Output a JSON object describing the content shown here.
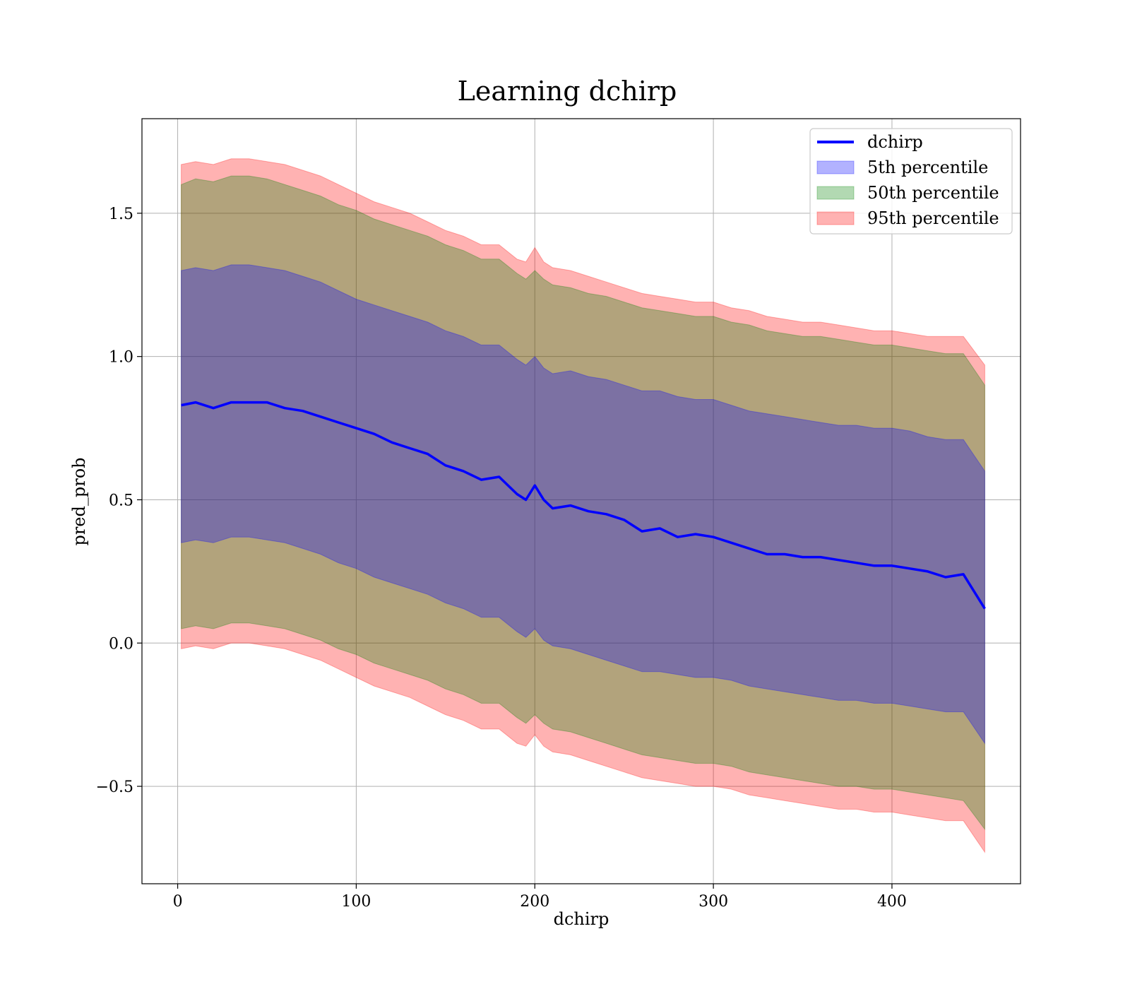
{
  "chart_data": {
    "type": "area",
    "title": "Learning dchirp",
    "xlabel": "dchirp",
    "ylabel": "pred_prob",
    "xlim": [
      -20,
      472
    ],
    "ylim": [
      -0.84,
      1.83
    ],
    "xticks": [
      0,
      100,
      200,
      300,
      400
    ],
    "xtick_labels": [
      "0",
      "100",
      "200",
      "300",
      "400"
    ],
    "yticks": [
      -0.5,
      0.0,
      0.5,
      1.0,
      1.5
    ],
    "ytick_labels": [
      "−0.5",
      "0.0",
      "0.5",
      "1.0",
      "1.5"
    ],
    "grid": true,
    "legend_position": "upper right",
    "x": [
      2,
      10,
      20,
      30,
      40,
      50,
      60,
      70,
      80,
      90,
      100,
      110,
      120,
      130,
      140,
      150,
      160,
      170,
      180,
      190,
      195,
      200,
      205,
      210,
      220,
      230,
      240,
      250,
      260,
      270,
      280,
      290,
      300,
      310,
      320,
      330,
      340,
      350,
      360,
      370,
      380,
      390,
      400,
      410,
      420,
      430,
      440,
      452
    ],
    "series": [
      {
        "name": "dchirp",
        "kind": "line",
        "color": "#0000ff",
        "values": [
          0.83,
          0.84,
          0.82,
          0.84,
          0.84,
          0.84,
          0.82,
          0.81,
          0.79,
          0.77,
          0.75,
          0.73,
          0.7,
          0.68,
          0.66,
          0.62,
          0.6,
          0.57,
          0.58,
          0.52,
          0.5,
          0.55,
          0.5,
          0.47,
          0.48,
          0.46,
          0.45,
          0.43,
          0.39,
          0.4,
          0.37,
          0.38,
          0.37,
          0.35,
          0.33,
          0.31,
          0.31,
          0.3,
          0.3,
          0.29,
          0.28,
          0.27,
          0.27,
          0.26,
          0.25,
          0.23,
          0.24,
          0.12
        ]
      },
      {
        "name": "5th percentile",
        "kind": "band",
        "color": "#0000ff",
        "upper": [
          1.3,
          1.31,
          1.3,
          1.32,
          1.32,
          1.31,
          1.3,
          1.28,
          1.26,
          1.23,
          1.2,
          1.18,
          1.16,
          1.14,
          1.12,
          1.09,
          1.07,
          1.04,
          1.04,
          0.99,
          0.97,
          1.0,
          0.96,
          0.94,
          0.95,
          0.93,
          0.92,
          0.9,
          0.88,
          0.88,
          0.86,
          0.85,
          0.85,
          0.83,
          0.81,
          0.8,
          0.79,
          0.78,
          0.77,
          0.76,
          0.76,
          0.75,
          0.75,
          0.74,
          0.72,
          0.71,
          0.71,
          0.6
        ],
        "lower": [
          0.35,
          0.36,
          0.35,
          0.37,
          0.37,
          0.36,
          0.35,
          0.33,
          0.31,
          0.28,
          0.26,
          0.23,
          0.21,
          0.19,
          0.17,
          0.14,
          0.12,
          0.09,
          0.09,
          0.04,
          0.02,
          0.05,
          0.01,
          -0.01,
          -0.02,
          -0.04,
          -0.06,
          -0.08,
          -0.1,
          -0.1,
          -0.11,
          -0.12,
          -0.12,
          -0.13,
          -0.15,
          -0.16,
          -0.17,
          -0.18,
          -0.19,
          -0.2,
          -0.2,
          -0.21,
          -0.21,
          -0.22,
          -0.23,
          -0.24,
          -0.24,
          -0.35
        ]
      },
      {
        "name": "50th percentile",
        "kind": "band",
        "color": "#008000",
        "upper": [
          1.6,
          1.62,
          1.61,
          1.63,
          1.63,
          1.62,
          1.6,
          1.58,
          1.56,
          1.53,
          1.51,
          1.48,
          1.46,
          1.44,
          1.42,
          1.39,
          1.37,
          1.34,
          1.34,
          1.29,
          1.27,
          1.3,
          1.27,
          1.25,
          1.24,
          1.22,
          1.21,
          1.19,
          1.17,
          1.16,
          1.15,
          1.14,
          1.14,
          1.12,
          1.11,
          1.09,
          1.08,
          1.07,
          1.07,
          1.06,
          1.05,
          1.04,
          1.04,
          1.03,
          1.02,
          1.01,
          1.01,
          0.9
        ],
        "lower": [
          0.05,
          0.06,
          0.05,
          0.07,
          0.07,
          0.06,
          0.05,
          0.03,
          0.01,
          -0.02,
          -0.04,
          -0.07,
          -0.09,
          -0.11,
          -0.13,
          -0.16,
          -0.18,
          -0.21,
          -0.21,
          -0.26,
          -0.28,
          -0.25,
          -0.28,
          -0.3,
          -0.31,
          -0.33,
          -0.35,
          -0.37,
          -0.39,
          -0.4,
          -0.41,
          -0.42,
          -0.42,
          -0.43,
          -0.45,
          -0.46,
          -0.47,
          -0.48,
          -0.49,
          -0.5,
          -0.5,
          -0.51,
          -0.51,
          -0.52,
          -0.53,
          -0.54,
          -0.55,
          -0.65
        ]
      },
      {
        "name": "95th percentile",
        "kind": "band",
        "color": "#ff0000",
        "upper": [
          1.67,
          1.68,
          1.67,
          1.69,
          1.69,
          1.68,
          1.67,
          1.65,
          1.63,
          1.6,
          1.57,
          1.54,
          1.52,
          1.5,
          1.47,
          1.44,
          1.42,
          1.39,
          1.39,
          1.34,
          1.33,
          1.38,
          1.33,
          1.31,
          1.3,
          1.28,
          1.26,
          1.24,
          1.22,
          1.21,
          1.2,
          1.19,
          1.19,
          1.17,
          1.16,
          1.14,
          1.13,
          1.12,
          1.12,
          1.11,
          1.1,
          1.09,
          1.09,
          1.08,
          1.07,
          1.07,
          1.07,
          0.97
        ],
        "lower": [
          -0.02,
          -0.01,
          -0.02,
          0.0,
          0.0,
          -0.01,
          -0.02,
          -0.04,
          -0.06,
          -0.09,
          -0.12,
          -0.15,
          -0.17,
          -0.19,
          -0.22,
          -0.25,
          -0.27,
          -0.3,
          -0.3,
          -0.35,
          -0.36,
          -0.32,
          -0.36,
          -0.38,
          -0.39,
          -0.41,
          -0.43,
          -0.45,
          -0.47,
          -0.48,
          -0.49,
          -0.5,
          -0.5,
          -0.51,
          -0.53,
          -0.54,
          -0.55,
          -0.56,
          -0.57,
          -0.58,
          -0.58,
          -0.59,
          -0.59,
          -0.6,
          -0.61,
          -0.62,
          -0.62,
          -0.73
        ]
      }
    ]
  }
}
